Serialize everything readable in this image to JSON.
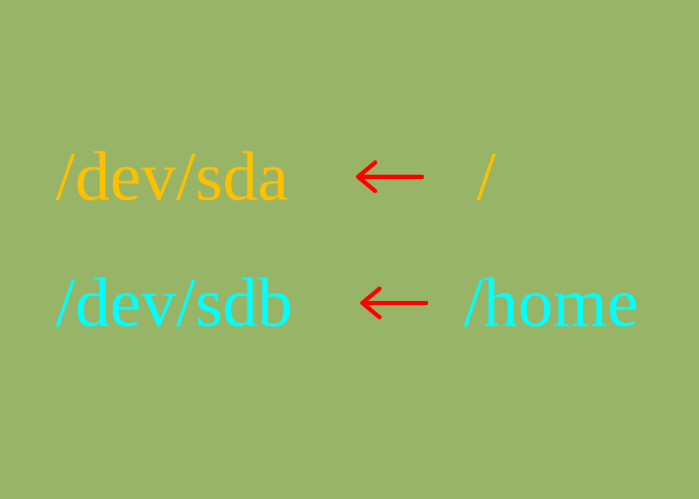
{
  "mappings": [
    {
      "device": "/dev/sda",
      "arrow": "←",
      "mount": "/",
      "color": "#ffc000"
    },
    {
      "device": "/dev/sdb",
      "arrow": "←",
      "mount": "/home",
      "color": "#00ffff"
    }
  ],
  "colors": {
    "background": "#97b467",
    "arrow": "#ff0000"
  }
}
